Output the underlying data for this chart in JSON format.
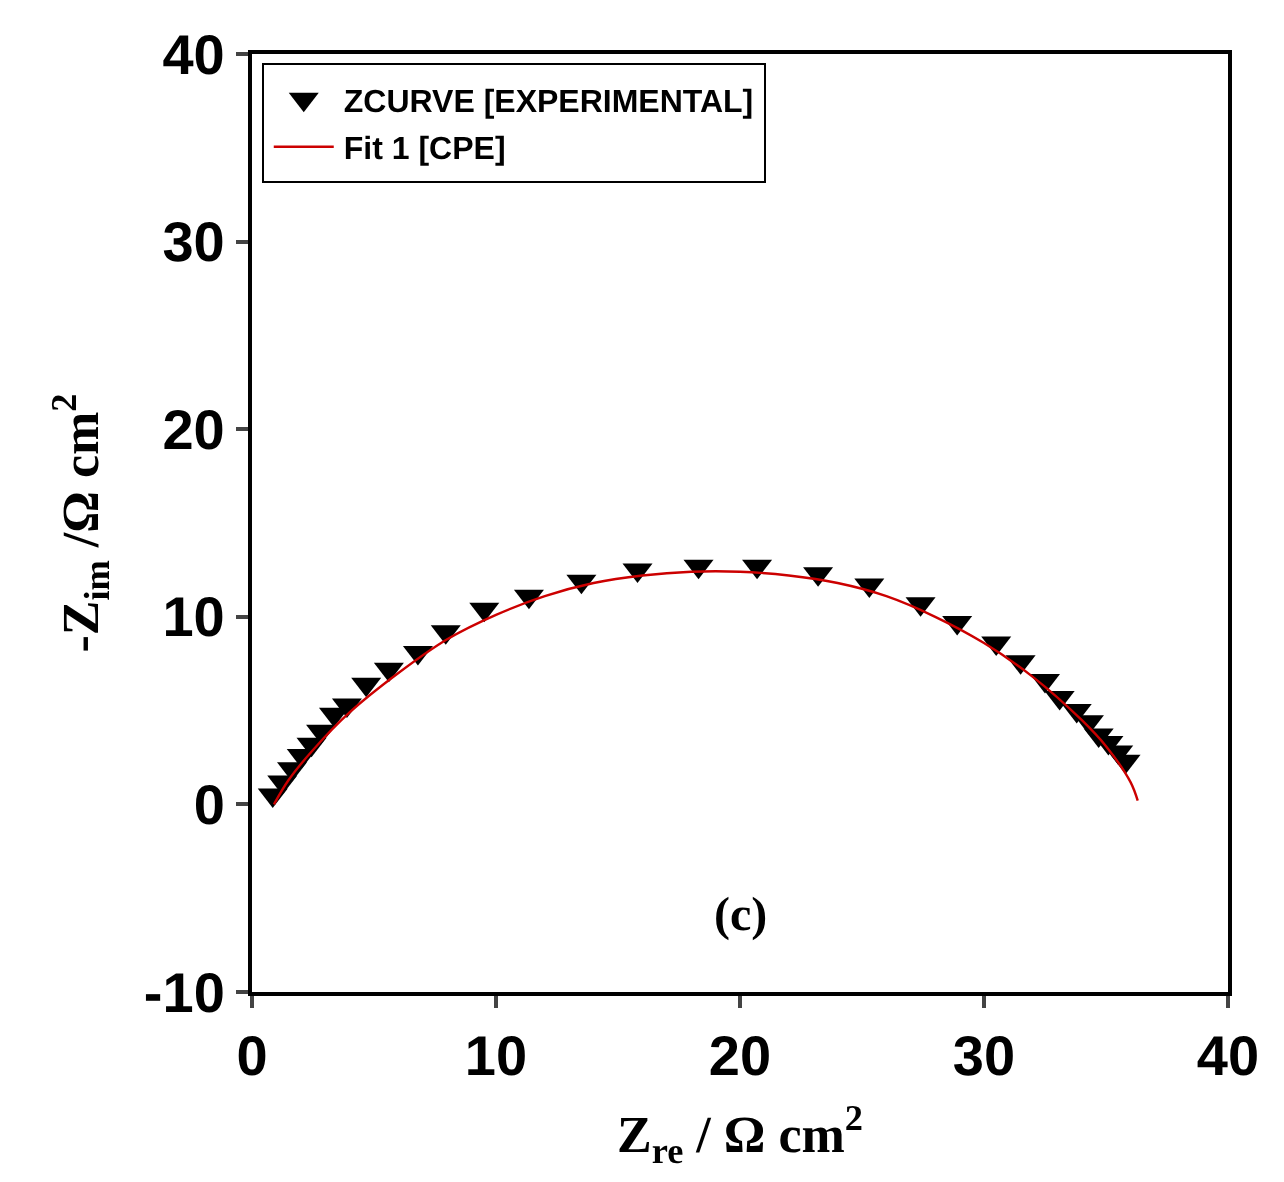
{
  "chart_data": {
    "type": "scatter",
    "xlabel": "Z$_{re}$ / Ω cm$^{2}$",
    "ylabel": "-Z$_{im}$ /Ω cm$^{2}$",
    "xlim": [
      0,
      40
    ],
    "ylim": [
      -10,
      40
    ],
    "xticks": [
      0,
      10,
      20,
      30,
      40
    ],
    "yticks": [
      -10,
      0,
      10,
      20,
      30,
      40
    ],
    "legend": "top left",
    "annotations": [
      "(c)"
    ],
    "series": [
      {
        "name": "ZCURVE [EXPERIMENTAL]",
        "marker": "triangle",
        "color": "#000000",
        "x": [
          0.85,
          1.24,
          1.64,
          2.04,
          2.44,
          2.83,
          3.36,
          3.89,
          4.68,
          5.61,
          6.8,
          7.94,
          9.52,
          11.35,
          13.5,
          15.8,
          18.3,
          20.7,
          23.2,
          25.3,
          27.4,
          28.9,
          30.5,
          31.5,
          32.5,
          33.1,
          33.8,
          34.3,
          34.7,
          35.1,
          35.5,
          35.8
        ],
        "values": [
          0.5,
          1.2,
          1.9,
          2.6,
          3.2,
          3.9,
          4.8,
          5.3,
          6.4,
          7.2,
          8.1,
          9.2,
          10.4,
          11.1,
          11.9,
          12.5,
          12.7,
          12.7,
          12.3,
          11.7,
          10.7,
          9.7,
          8.6,
          7.6,
          6.6,
          5.7,
          5.0,
          4.4,
          3.7,
          3.3,
          2.8,
          2.3
        ]
      },
      {
        "name": "Fit 1 [CPE]",
        "type": "line",
        "marker": "none",
        "color": "#cc0000",
        "x": [
          0.9,
          1.5,
          2.5,
          4,
          6,
          8,
          10,
          12,
          14,
          16,
          18,
          20,
          22,
          24,
          26,
          28,
          30,
          32,
          34,
          35,
          36,
          36.3
        ],
        "values": [
          0,
          1.3,
          2.9,
          4.9,
          7.0,
          8.8,
          10.1,
          11.1,
          11.8,
          12.2,
          12.4,
          12.4,
          12.2,
          11.8,
          11.1,
          10.0,
          8.6,
          6.8,
          4.5,
          3.1,
          1.2,
          0.2
        ]
      }
    ]
  }
}
